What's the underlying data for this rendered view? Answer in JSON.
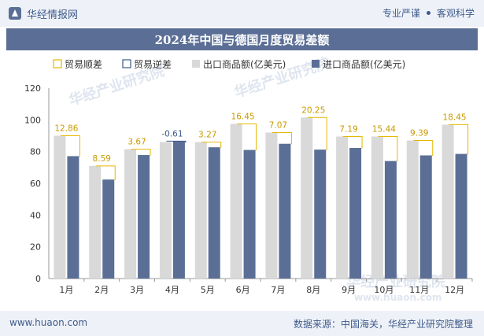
{
  "header": {
    "brand": "华经情报网",
    "tag1": "专业严谨",
    "tag2": "客观科学"
  },
  "footer": {
    "website": "www.huaon.com",
    "source": "数据来源：中国海关，华经产业研究院整理"
  },
  "watermark": {
    "text": "华经产业研究院",
    "url": "www.huaon.com"
  },
  "colors": {
    "export": "#d9d9d9",
    "import": "#5b6f96",
    "surplus": "#e6b800",
    "deficit": "#3f5a8a"
  },
  "chart_data": {
    "type": "bar",
    "title": "2024年中国与德国月度贸易差额",
    "categories": [
      "1月",
      "2月",
      "3月",
      "4月",
      "5月",
      "6月",
      "7月",
      "8月",
      "9月",
      "10月",
      "11月",
      "12月"
    ],
    "series": [
      {
        "name": "出口商品额(亿美元)",
        "values": [
          90.0,
          71.0,
          81.5,
          86.0,
          86.0,
          97.5,
          92.0,
          101.5,
          89.5,
          89.5,
          87.0,
          97.0
        ]
      },
      {
        "name": "进口商品额(亿美元)",
        "values": [
          77.14,
          62.41,
          77.83,
          86.61,
          82.73,
          81.05,
          84.93,
          81.25,
          82.31,
          74.06,
          77.61,
          78.55
        ]
      }
    ],
    "balance": [
      12.86,
      8.59,
      3.67,
      -0.61,
      3.27,
      16.45,
      7.07,
      20.25,
      7.19,
      15.44,
      9.39,
      18.45
    ],
    "legend": [
      "贸易顺差",
      "贸易逆差",
      "出口商品额(亿美元)",
      "进口商品额(亿美元)"
    ],
    "ylim": [
      0,
      120
    ],
    "yticks": [
      0,
      20,
      40,
      60,
      80,
      100,
      120
    ],
    "legend_position": "top"
  }
}
